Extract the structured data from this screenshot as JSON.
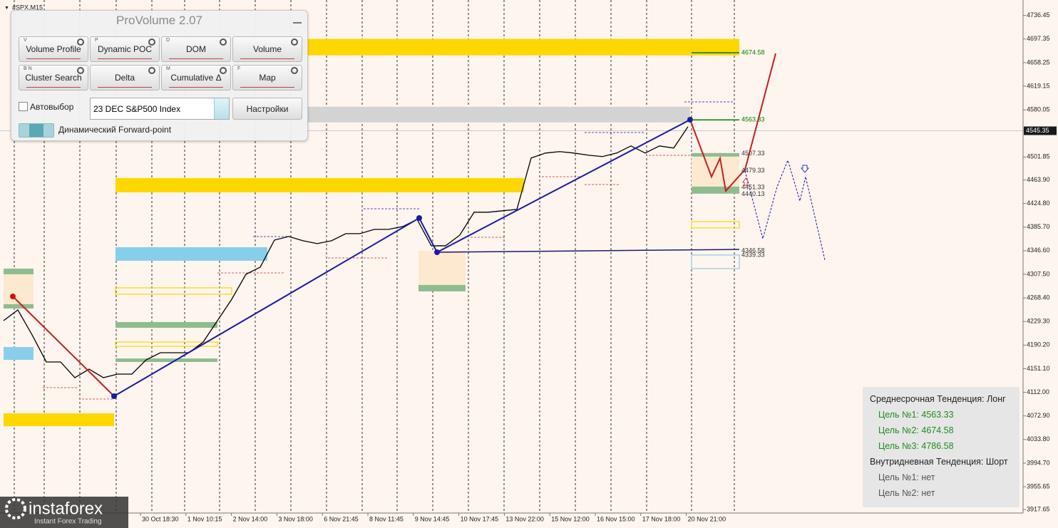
{
  "symbol": "#SPX,M15",
  "panel": {
    "title": "ProVolume 2.07",
    "buttons": [
      {
        "key": "V",
        "label": "Volume Profile"
      },
      {
        "key": "P",
        "label": "Dynamic POC"
      },
      {
        "key": "D",
        "label": "DOM"
      },
      {
        "label": "Volume"
      },
      {
        "key": "B N",
        "label": "Cluster Search"
      },
      {
        "label": "Delta"
      },
      {
        "key": "M",
        "label": "Cumulative Δ"
      },
      {
        "key": "F",
        "label": "Map"
      }
    ],
    "auto_select": "Автовыбор",
    "instrument": "23 DEC S&P500 Index",
    "settings": "Настройки",
    "forward_point": "Динамический Forward-point"
  },
  "price_axis": {
    "ylim": [
      3912,
      4762
    ],
    "ticks": [
      4736.45,
      4697.35,
      4658.25,
      4619.15,
      4580.05,
      4501.85,
      {
        "value": 4463.9,
        "label": "4463.90"
      },
      {
        "value": 4424.8,
        "label": "4424.80"
      },
      {
        "value": 4385.7,
        "label": "4385.70"
      },
      {
        "value": 4346.6,
        "label": "4346.60"
      },
      {
        "value": 4307.5,
        "label": "4307.50"
      },
      {
        "value": 4268.4,
        "label": "4268.40"
      },
      {
        "value": 4229.3,
        "label": "4229.30"
      },
      {
        "value": 4190.2,
        "label": "4190.20"
      },
      {
        "value": 4151.1,
        "label": "4151.10"
      },
      {
        "value": 4112,
        "label": "4112.00"
      },
      {
        "value": 4072.9,
        "label": "4072.90"
      },
      {
        "value": 4033.8,
        "label": "4033.80"
      },
      {
        "value": 3994.7,
        "label": "3994.70"
      },
      3955.65,
      3917.65
    ],
    "current_price": 4545.35
  },
  "time_axis": {
    "labels": [
      "30 Oct 18:30",
      "1 Nov 10:15",
      "2 Nov 14:00",
      "3 Nov 18:00",
      "6 Nov 21:45",
      "8 Nov 11:45",
      "9 Nov 14:45",
      "10 Nov 17:45",
      "13 Nov 22:00",
      "15 Nov 12:00",
      "16 Nov 15:00",
      "17 Nov 18:00",
      "20 Nov 21:00"
    ]
  },
  "price_line": {
    "color": "#000000",
    "values": [
      4230.8,
      4248.5,
      4207.2,
      4162.3,
      4162.3,
      4136.3,
      4150.4,
      4136.3,
      4142.2,
      4142.2,
      4165.8,
      4177.6,
      4177.6,
      4177.6,
      4195.3,
      4230.8,
      4266.2,
      4307.6,
      4319.4,
      4364.3,
      4370.2,
      4363.1,
      4358.4,
      4363.1,
      4374.9,
      4374.9,
      4382.0,
      4382.0,
      4386.7,
      4398.6,
      4354.8,
      4354.8,
      4372.6,
      4410.4,
      4410.4,
      4412.8,
      4415.1,
      4500.2,
      4508.4,
      4510.8,
      4508.4,
      4504.9,
      4502.6,
      4508.4,
      4520.2,
      4508.4,
      4520.2,
      4516.7,
      4552.2
    ]
  },
  "zones": [
    {
      "from": 4697.5,
      "to": 4670.3,
      "color": "#ffd700",
      "style": "fill"
    },
    {
      "from": 4585.2,
      "to": 4559.2,
      "color": "#d3d3d3",
      "style": "fill"
    },
    {
      "from": 4467.0,
      "to": 4443.4,
      "color": "#ffd700",
      "style": "fill"
    },
    {
      "from": 4352.4,
      "to": 4330.0,
      "color": "#87ceeb",
      "style": "fill"
    },
    {
      "from": 4285.1,
      "to": 4274.5,
      "color": "#ffd700",
      "style": "outline"
    },
    {
      "from": 4228.4,
      "to": 4218.9,
      "color": "#8fbc8f",
      "style": "fill"
    },
    {
      "from": 4195.3,
      "to": 4188.2,
      "color": "#ffd700",
      "style": "outline"
    },
    {
      "from": 4168.1,
      "to": 4162.3,
      "color": "#8fbc8f",
      "style": "fill"
    },
    {
      "from": 4317.0,
      "to": 4254.4,
      "color": "#fde9d0",
      "style": "fill"
    },
    {
      "from": 4317.0,
      "to": 4307.6,
      "color": "#8fbc8f",
      "style": "fill"
    },
    {
      "from": 4258.0,
      "to": 4250.9,
      "color": "#8fbc8f",
      "style": "fill"
    },
    {
      "from": 4187.0,
      "to": 4165.8,
      "color": "#87ceeb",
      "style": "fill"
    },
    {
      "from": 4077.2,
      "to": 4055.9,
      "color": "#ffd700",
      "style": "fill"
    },
    {
      "from": 4346.6,
      "to": 4280.4,
      "color": "#fde9d0",
      "style": "fill"
    },
    {
      "from": 4289.9,
      "to": 4279.2,
      "color": "#8fbc8f",
      "style": "fill"
    },
    {
      "from": 4502.6,
      "to": 4449.4,
      "color": "#fde9d0",
      "style": "fill"
    },
    {
      "from": 4508.4,
      "to": 4502.6,
      "color": "#8fbc8f",
      "style": "fill"
    },
    {
      "from": 4452.9,
      "to": 4441.1,
      "color": "#8fbc8f",
      "style": "fill"
    },
    {
      "from": 4395.0,
      "to": 4384.4,
      "color": "#ffd700",
      "style": "outline"
    },
    {
      "from": 4339.5,
      "to": 4317.0,
      "color": "#87ceeb",
      "style": "outline"
    }
  ],
  "levels": [
    {
      "value": 4674.58,
      "color": "#008000",
      "line": true
    },
    {
      "value": 4563.33,
      "color": "#008000",
      "line": true
    },
    {
      "value": 4507.33,
      "color": "#333333"
    },
    {
      "value": 4479.33,
      "color": "#333333"
    },
    {
      "value": 4451.33,
      "color": "#333333"
    },
    {
      "value": 4440.13,
      "color": "#333333"
    },
    {
      "value": 4346.58,
      "color": "#333333"
    },
    {
      "value": 4339.33,
      "color": "#333333"
    }
  ],
  "info_box": {
    "lines": [
      {
        "text": "Среднесрочная Тенденция: Лонг",
        "color": "#222222"
      },
      {
        "text": "Цель №1: 4563.33",
        "color": "#228b22"
      },
      {
        "text": "Цель №2: 4674.58",
        "color": "#228b22"
      },
      {
        "text": "Цель №3: 4786.58",
        "color": "#228b22"
      },
      {
        "text": "Внутридневная Тенденция: Шорт",
        "color": "#222222"
      },
      {
        "text": "Цель №1: нет",
        "color": "#555555"
      },
      {
        "text": "Цель №2: нет",
        "color": "#555555"
      }
    ]
  },
  "logo": {
    "name": "instaforex",
    "tagline": "Instant Forex Trading"
  }
}
